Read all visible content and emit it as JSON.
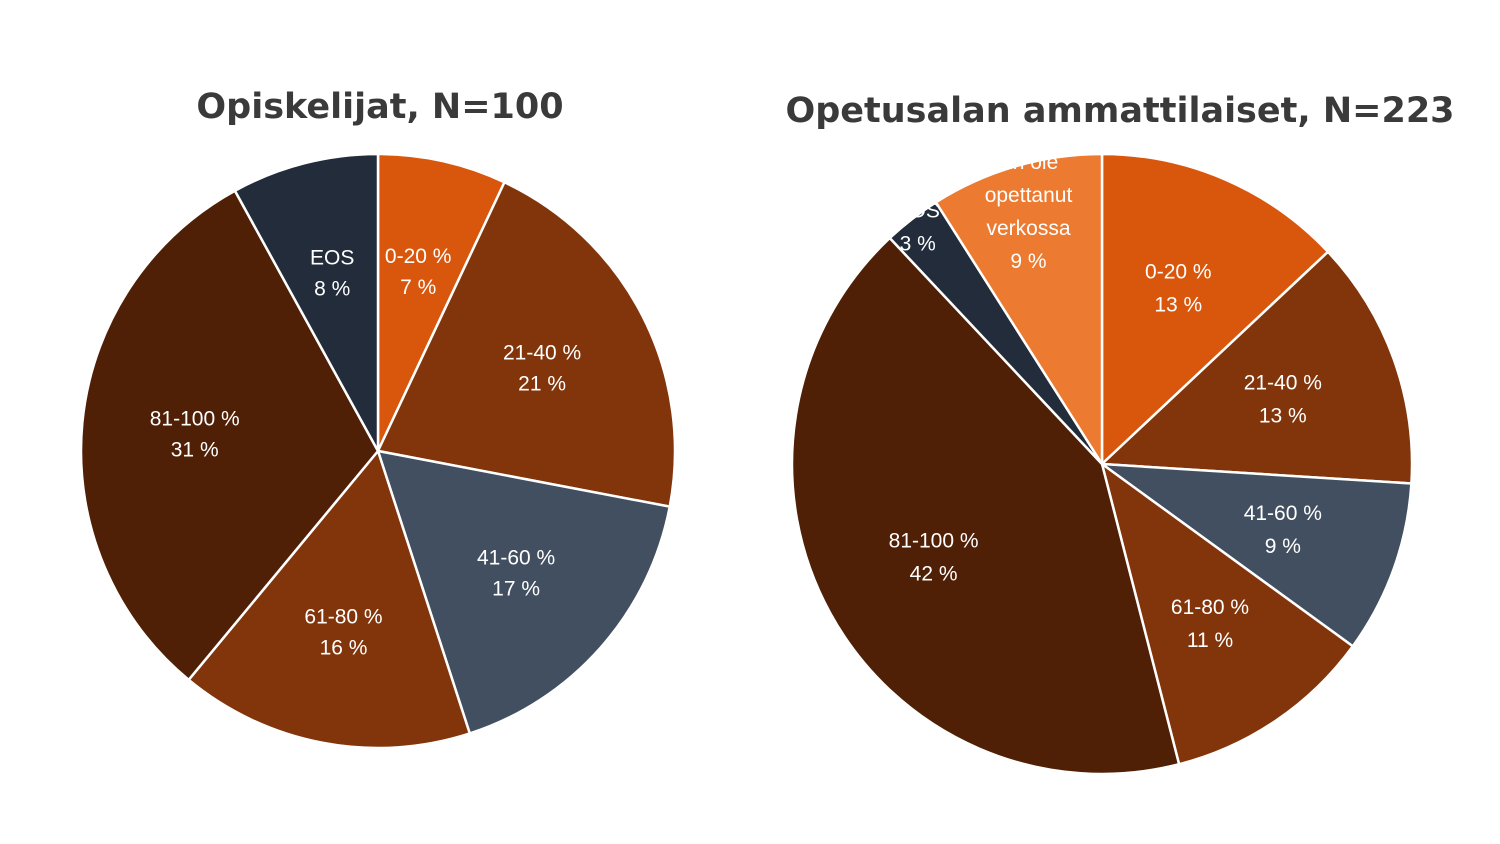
{
  "colors": {
    "orange": "#d9570d",
    "light_orange": "#ec7a30",
    "rust": "#82350b",
    "dark_brown": "#4f1f06",
    "slate": "#424f60",
    "navy": "#222c3a"
  },
  "chart_data": [
    {
      "type": "pie",
      "title": "Opiskelijat, N=100",
      "start": "top",
      "direction": "clockwise",
      "slices": [
        {
          "category": "0-20 %",
          "value": 7,
          "value_label": "7 %",
          "color": "#d9570d"
        },
        {
          "category": "21-40 %",
          "value": 21,
          "value_label": "21 %",
          "color": "#82350b"
        },
        {
          "category": "41-60 %",
          "value": 17,
          "value_label": "17 %",
          "color": "#424f60"
        },
        {
          "category": "61-80 %",
          "value": 16,
          "value_label": "16 %",
          "color": "#82350b"
        },
        {
          "category": "81-100 %",
          "value": 31,
          "value_label": "31 %",
          "color": "#4f1f06"
        },
        {
          "category": "EOS",
          "value": 8,
          "value_label": "8 %",
          "color": "#222c3a"
        }
      ]
    },
    {
      "type": "pie",
      "title": "Opetusalan ammattilaiset, N=223",
      "start": "top",
      "direction": "clockwise",
      "slices": [
        {
          "category": "0-20 %",
          "value": 13,
          "value_label": "13 %",
          "color": "#d9570d"
        },
        {
          "category": "21-40 %",
          "value": 13,
          "value_label": "13 %",
          "color": "#82350b"
        },
        {
          "category": "41-60 %",
          "value": 9,
          "value_label": "9 %",
          "color": "#424f60"
        },
        {
          "category": "61-80 %",
          "value": 11,
          "value_label": "11 %",
          "color": "#82350b"
        },
        {
          "category": "81-100 %",
          "value": 42,
          "value_label": "42 %",
          "color": "#4f1f06"
        },
        {
          "category": "EOS",
          "value": 3,
          "value_label": "3 %",
          "color": "#222c3a"
        },
        {
          "category": "En ole opettanut verkossa",
          "category_lines": [
            "En ole",
            "opettanut",
            "verkossa"
          ],
          "value": 9,
          "value_label": "9 %",
          "color": "#ec7a30"
        }
      ]
    }
  ]
}
